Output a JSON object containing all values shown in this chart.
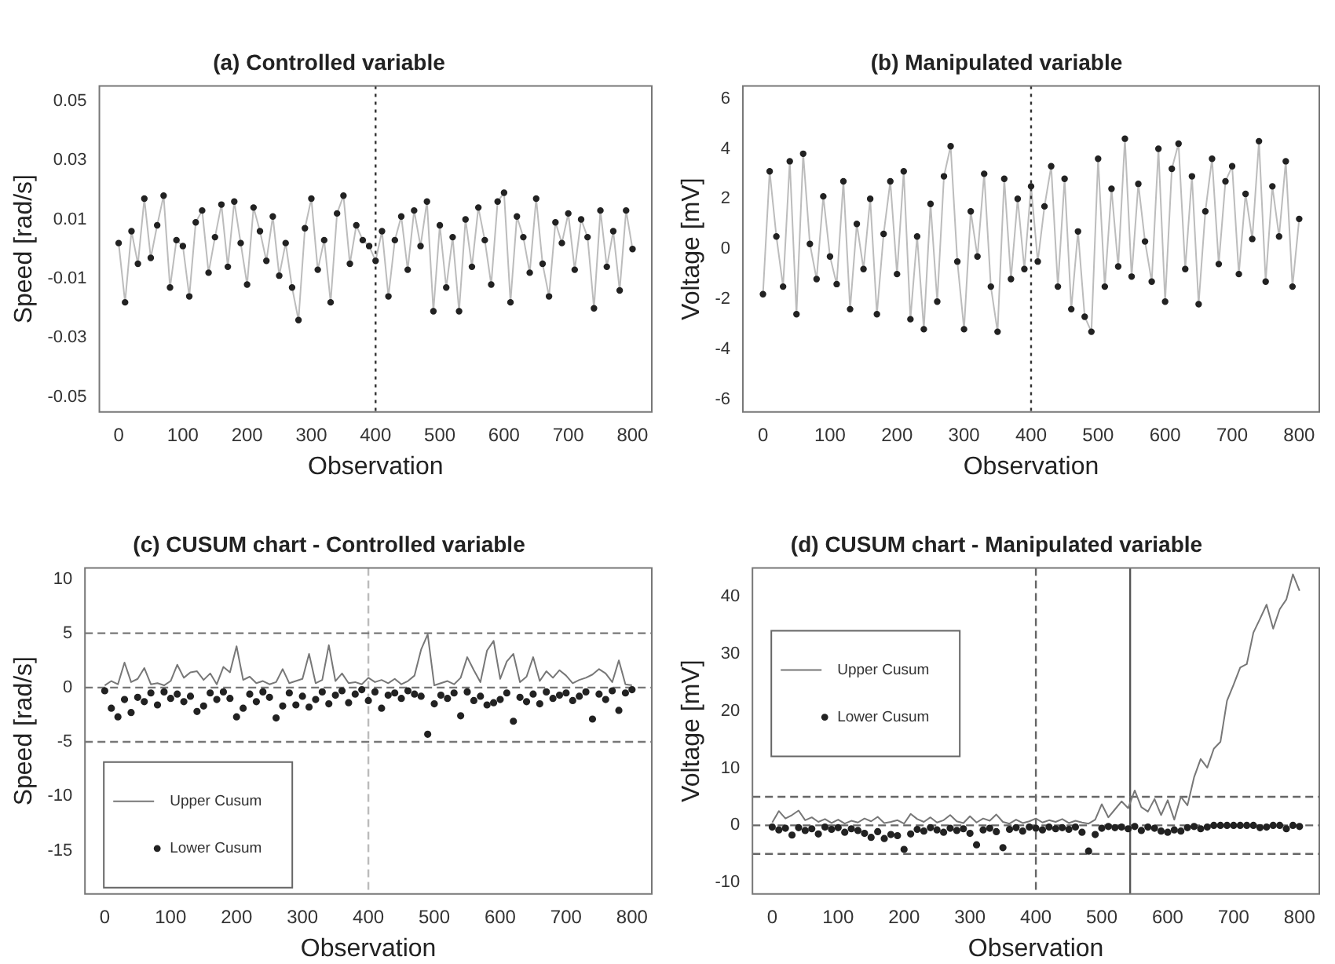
{
  "chart_data": [
    {
      "type": "line",
      "title": "(a) Controlled variable",
      "xlabel": "Observation",
      "ylabel": "Speed [rad/s]",
      "marker": "circle",
      "x": [
        0,
        10,
        20,
        30,
        40,
        50,
        60,
        70,
        80,
        90,
        100,
        110,
        120,
        130,
        140,
        150,
        160,
        170,
        180,
        190,
        200,
        210,
        220,
        230,
        240,
        250,
        260,
        270,
        280,
        290,
        300,
        310,
        320,
        330,
        340,
        350,
        360,
        370,
        380,
        390,
        400,
        410,
        420,
        430,
        440,
        450,
        460,
        470,
        480,
        490,
        500,
        510,
        520,
        530,
        540,
        550,
        560,
        570,
        580,
        590,
        600,
        610,
        620,
        630,
        640,
        650,
        660,
        670,
        680,
        690,
        700,
        710,
        720,
        730,
        740,
        750,
        760,
        770,
        780,
        790,
        800
      ],
      "series": [
        {
          "color": "#222222",
          "values": [
            0.002,
            -0.018,
            0.006,
            -0.005,
            0.017,
            -0.003,
            0.008,
            0.018,
            -0.013,
            0.003,
            0.001,
            -0.016,
            0.009,
            0.013,
            -0.008,
            0.004,
            0.015,
            -0.006,
            0.016,
            0.002,
            -0.012,
            0.014,
            0.006,
            -0.004,
            0.011,
            -0.009,
            0.002,
            -0.013,
            -0.024,
            0.007,
            0.017,
            -0.007,
            0.003,
            -0.018,
            0.012,
            0.018,
            -0.005,
            0.008,
            0.003,
            0.001,
            -0.004,
            0.006,
            -0.016,
            0.003,
            0.011,
            -0.007,
            0.013,
            0.001,
            0.016,
            -0.021,
            0.008,
            -0.013,
            0.004,
            -0.021,
            0.01,
            -0.006,
            0.014,
            0.003,
            -0.012,
            0.016,
            0.019,
            -0.018,
            0.011,
            0.004,
            -0.008,
            0.017,
            -0.005,
            -0.016,
            0.009,
            0.002,
            0.012,
            -0.007,
            0.01,
            0.004,
            -0.02,
            0.013,
            -0.006,
            0.006,
            -0.014,
            0.013,
            0.0
          ]
        }
      ],
      "xlim": [
        -30,
        830
      ],
      "xticks": [
        0,
        100,
        200,
        300,
        400,
        500,
        600,
        700,
        800
      ],
      "ylim": [
        -0.055,
        0.055
      ],
      "yticks": [
        -0.05,
        -0.03,
        -0.01,
        0.01,
        0.03,
        0.05
      ],
      "ref_lines": [
        {
          "axis": "x",
          "value": 400,
          "color": "#333333",
          "line_style": "dotted"
        }
      ]
    },
    {
      "type": "line",
      "title": "(b) Manipulated variable",
      "xlabel": "Observation",
      "ylabel": "Voltage [mV]",
      "marker": "circle",
      "x": [
        0,
        10,
        20,
        30,
        40,
        50,
        60,
        70,
        80,
        90,
        100,
        110,
        120,
        130,
        140,
        150,
        160,
        170,
        180,
        190,
        200,
        210,
        220,
        230,
        240,
        250,
        260,
        270,
        280,
        290,
        300,
        310,
        320,
        330,
        340,
        350,
        360,
        370,
        380,
        390,
        400,
        410,
        420,
        430,
        440,
        450,
        460,
        470,
        480,
        490,
        500,
        510,
        520,
        530,
        540,
        550,
        560,
        570,
        580,
        590,
        600,
        610,
        620,
        630,
        640,
        650,
        660,
        670,
        680,
        690,
        700,
        710,
        720,
        730,
        740,
        750,
        760,
        770,
        780,
        790,
        800
      ],
      "series": [
        {
          "color": "#222222",
          "values": [
            -1.8,
            3.1,
            0.5,
            -1.5,
            3.5,
            -2.6,
            3.8,
            0.2,
            -1.2,
            2.1,
            -0.3,
            -1.4,
            2.7,
            -2.4,
            1.0,
            -0.8,
            2.0,
            -2.6,
            0.6,
            2.7,
            -1.0,
            3.1,
            -2.8,
            0.5,
            -3.2,
            1.8,
            -2.1,
            2.9,
            4.1,
            -0.5,
            -3.2,
            1.5,
            -0.3,
            3.0,
            -1.5,
            -3.3,
            2.8,
            -1.2,
            2.0,
            -0.8,
            2.5,
            -0.5,
            1.7,
            3.3,
            -1.5,
            2.8,
            -2.4,
            0.7,
            -2.7,
            -3.3,
            3.6,
            -1.5,
            2.4,
            -0.7,
            4.4,
            -1.1,
            2.6,
            0.3,
            -1.3,
            4.0,
            -2.1,
            3.2,
            4.2,
            -0.8,
            2.9,
            -2.2,
            1.5,
            3.6,
            -0.6,
            2.7,
            3.3,
            -1.0,
            2.2,
            0.4,
            4.3,
            -1.3,
            2.5,
            0.5,
            3.5,
            -1.5,
            1.2
          ]
        }
      ],
      "xlim": [
        -30,
        830
      ],
      "xticks": [
        0,
        100,
        200,
        300,
        400,
        500,
        600,
        700,
        800
      ],
      "ylim": [
        -6.5,
        6.5
      ],
      "yticks": [
        -6,
        -4,
        -2,
        0,
        2,
        4,
        6
      ],
      "ref_lines": [
        {
          "axis": "x",
          "value": 400,
          "color": "#333333",
          "line_style": "dotted"
        }
      ]
    },
    {
      "type": "line",
      "title": "(c) CUSUM chart - Controlled variable",
      "xlabel": "Observation",
      "ylabel": "Speed [rad/s]",
      "legend": "bottom left",
      "x": [
        0,
        10,
        20,
        30,
        40,
        50,
        60,
        70,
        80,
        90,
        100,
        110,
        120,
        130,
        140,
        150,
        160,
        170,
        180,
        190,
        200,
        210,
        220,
        230,
        240,
        250,
        260,
        270,
        280,
        290,
        300,
        310,
        320,
        330,
        340,
        350,
        360,
        370,
        380,
        390,
        400,
        410,
        420,
        430,
        440,
        450,
        460,
        470,
        480,
        490,
        500,
        510,
        520,
        530,
        540,
        550,
        560,
        570,
        580,
        590,
        600,
        610,
        620,
        630,
        640,
        650,
        660,
        670,
        680,
        690,
        700,
        710,
        720,
        730,
        740,
        750,
        760,
        770,
        780,
        790,
        800
      ],
      "series": [
        {
          "name": "Upper Cusum",
          "type": "line",
          "color": "#777777",
          "values": [
            0.2,
            0.6,
            0.3,
            2.3,
            0.5,
            0.8,
            1.8,
            0.3,
            0.4,
            0.2,
            0.6,
            2.1,
            0.9,
            1.4,
            1.5,
            0.7,
            1.3,
            0.3,
            1.9,
            1.4,
            3.8,
            0.7,
            1.0,
            0.4,
            0.6,
            0.3,
            0.5,
            1.7,
            0.4,
            0.6,
            0.8,
            3.1,
            0.4,
            0.7,
            3.9,
            0.6,
            1.3,
            0.4,
            0.5,
            0.3,
            0.9,
            0.5,
            0.7,
            0.4,
            0.8,
            0.3,
            0.6,
            1.1,
            3.5,
            4.9,
            0.2,
            0.4,
            0.6,
            0.3,
            0.9,
            2.8,
            1.6,
            0.5,
            3.4,
            4.3,
            0.8,
            2.4,
            3.1,
            0.5,
            1.0,
            2.8,
            0.6,
            1.5,
            0.9,
            1.6,
            1.1,
            0.4,
            0.7,
            0.9,
            1.2,
            1.7,
            1.3,
            0.5,
            2.5,
            0.3,
            0.2
          ]
        },
        {
          "name": "Lower Cusum",
          "type": "scatter",
          "color": "#222222",
          "values": [
            -0.3,
            -1.9,
            -2.7,
            -1.1,
            -2.3,
            -0.9,
            -1.3,
            -0.5,
            -1.6,
            -0.4,
            -1.0,
            -0.6,
            -1.3,
            -0.8,
            -2.2,
            -1.7,
            -0.5,
            -1.1,
            -0.4,
            -1.0,
            -2.7,
            -1.9,
            -0.6,
            -1.3,
            -0.4,
            -0.9,
            -2.8,
            -1.7,
            -0.5,
            -1.6,
            -0.8,
            -1.8,
            -1.1,
            -0.4,
            -1.5,
            -0.7,
            -0.3,
            -1.4,
            -0.6,
            -0.2,
            -1.2,
            -0.4,
            -1.9,
            -0.7,
            -0.5,
            -1.0,
            -0.3,
            -0.6,
            -0.8,
            -4.3,
            -1.5,
            -0.7,
            -1.0,
            -0.5,
            -2.6,
            -0.4,
            -1.2,
            -0.8,
            -1.6,
            -1.4,
            -1.1,
            -0.5,
            -3.1,
            -0.9,
            -1.3,
            -0.6,
            -1.5,
            -0.4,
            -1.0,
            -0.7,
            -0.5,
            -1.2,
            -0.8,
            -0.4,
            -2.9,
            -0.6,
            -1.1,
            -0.3,
            -2.1,
            -0.5,
            -0.2
          ]
        }
      ],
      "xlim": [
        -30,
        830
      ],
      "xticks": [
        0,
        100,
        200,
        300,
        400,
        500,
        600,
        700,
        800
      ],
      "ylim": [
        -19,
        11
      ],
      "yticks": [
        -15,
        -10,
        -5,
        0,
        5,
        10
      ],
      "ref_lines": [
        {
          "axis": "x",
          "value": 400,
          "color": "#bbbbbb",
          "line_style": "dashed"
        },
        {
          "axis": "y",
          "value": 5,
          "color": "#777777",
          "line_style": "dashed"
        },
        {
          "axis": "y",
          "value": 0,
          "color": "#777777",
          "line_style": "dashed"
        },
        {
          "axis": "y",
          "value": -5,
          "color": "#777777",
          "line_style": "dashed"
        }
      ]
    },
    {
      "type": "line",
      "title": "(d) CUSUM chart - Manipulated variable",
      "xlabel": "Observation",
      "ylabel": "Voltage [mV]",
      "legend": "top left",
      "x": [
        0,
        10,
        20,
        30,
        40,
        50,
        60,
        70,
        80,
        90,
        100,
        110,
        120,
        130,
        140,
        150,
        160,
        170,
        180,
        190,
        200,
        210,
        220,
        230,
        240,
        250,
        260,
        270,
        280,
        290,
        300,
        310,
        320,
        330,
        340,
        350,
        360,
        370,
        380,
        390,
        400,
        410,
        420,
        430,
        440,
        450,
        460,
        470,
        480,
        490,
        500,
        510,
        520,
        530,
        540,
        550,
        560,
        570,
        580,
        590,
        600,
        610,
        620,
        630,
        640,
        650,
        660,
        670,
        680,
        690,
        700,
        710,
        720,
        730,
        740,
        750,
        760,
        770,
        780,
        790,
        800
      ],
      "series": [
        {
          "name": "Upper Cusum",
          "type": "line",
          "color": "#777777",
          "values": [
            0.5,
            2.5,
            1.2,
            1.8,
            2.6,
            0.9,
            1.4,
            0.6,
            1.1,
            0.4,
            1.0,
            0.3,
            0.8,
            0.5,
            1.2,
            0.7,
            1.5,
            0.4,
            0.6,
            0.9,
            0.3,
            2.0,
            1.1,
            0.6,
            1.4,
            0.5,
            0.9,
            1.8,
            0.7,
            0.4,
            1.6,
            0.5,
            1.2,
            0.8,
            1.9,
            0.6,
            0.3,
            1.0,
            0.4,
            0.7,
            1.2,
            0.5,
            0.9,
            0.6,
            1.1,
            0.4,
            0.8,
            0.5,
            0.3,
            1.0,
            3.7,
            1.4,
            2.8,
            4.2,
            3.0,
            6.1,
            3.2,
            2.4,
            4.6,
            1.8,
            4.4,
            1.0,
            5.0,
            3.5,
            8.4,
            11.6,
            10.1,
            13.4,
            14.6,
            21.8,
            24.6,
            27.6,
            28.2,
            33.7,
            36.1,
            38.6,
            34.4,
            37.8,
            39.5,
            43.9,
            41.0
          ]
        },
        {
          "name": "Lower Cusum",
          "type": "scatter",
          "color": "#222222",
          "values": [
            -0.3,
            -0.8,
            -0.5,
            -1.7,
            -0.4,
            -0.9,
            -0.6,
            -1.5,
            -0.3,
            -0.7,
            -0.4,
            -1.2,
            -0.6,
            -0.9,
            -1.4,
            -2.1,
            -1.1,
            -2.3,
            -1.6,
            -1.8,
            -4.2,
            -1.5,
            -0.7,
            -1.0,
            -0.4,
            -0.8,
            -1.2,
            -0.5,
            -0.9,
            -0.6,
            -1.4,
            -3.4,
            -0.8,
            -0.5,
            -1.1,
            -3.9,
            -0.7,
            -0.4,
            -1.0,
            -0.3,
            -0.5,
            -0.8,
            -0.3,
            -0.6,
            -0.4,
            -0.7,
            -0.3,
            -1.2,
            -4.5,
            -1.6,
            -0.5,
            -0.2,
            -0.4,
            -0.3,
            -0.6,
            -0.2,
            -0.9,
            -0.3,
            -0.5,
            -1.0,
            -1.2,
            -0.8,
            -1.0,
            -0.4,
            -0.2,
            -0.6,
            -0.3,
            0,
            0,
            0,
            0,
            0,
            0,
            0,
            -0.4,
            -0.3,
            0,
            0,
            -0.6,
            0,
            -0.2
          ]
        }
      ],
      "xlim": [
        -30,
        830
      ],
      "xticks": [
        0,
        100,
        200,
        300,
        400,
        500,
        600,
        700,
        800
      ],
      "ylim": [
        -12,
        45
      ],
      "yticks": [
        -10,
        0,
        10,
        20,
        30,
        40
      ],
      "ref_lines": [
        {
          "axis": "x",
          "value": 400,
          "color": "#666666",
          "line_style": "dashed"
        },
        {
          "axis": "x",
          "value": 543,
          "color": "#555555",
          "line_style": "solid"
        },
        {
          "axis": "y",
          "value": 5,
          "color": "#666666",
          "line_style": "dashed"
        },
        {
          "axis": "y",
          "value": 0,
          "color": "#666666",
          "line_style": "dashed"
        },
        {
          "axis": "y",
          "value": -5,
          "color": "#666666",
          "line_style": "dashed"
        }
      ]
    }
  ]
}
